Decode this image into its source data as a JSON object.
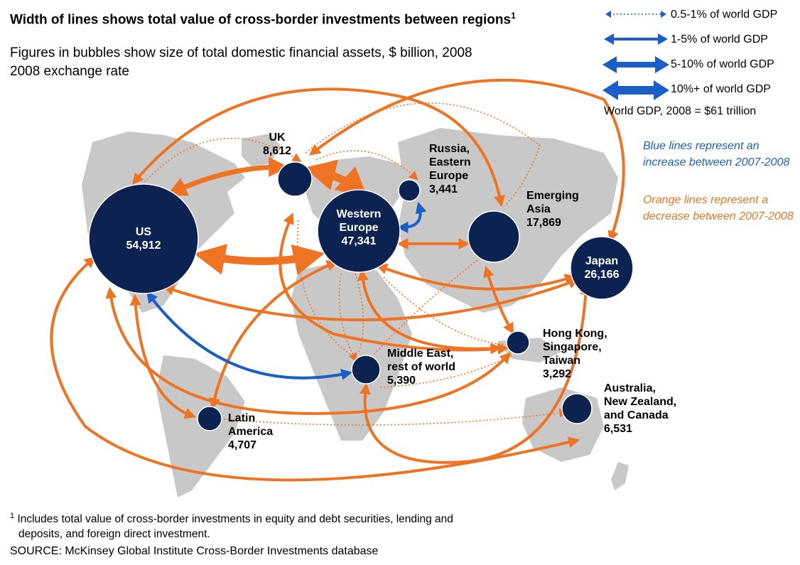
{
  "header": {
    "title": "Width of lines shows total value of cross-border investments between regions",
    "title_footnote_marker": "1",
    "subtitle_line1": "Figures in bubbles show size of total domestic financial assets, $ billion, 2008",
    "subtitle_line2": "2008 exchange rate"
  },
  "legend": {
    "items": [
      {
        "label": "0.5-1% of world GDP",
        "style": "dotted"
      },
      {
        "label": "1-5% of world GDP",
        "style": "thin"
      },
      {
        "label": "5-10% of world GDP",
        "style": "medium"
      },
      {
        "label": "10%+ of world GDP",
        "style": "thick"
      }
    ],
    "world_gdp": "World GDP, 2008 = $61 trillion",
    "blue_note": "Blue lines represent an increase between 2007-2008",
    "orange_note": "Orange lines represent a decrease between 2007-2008"
  },
  "colors": {
    "bubble": "#0c2352",
    "orange": "#ee7424",
    "blue": "#1a5fc8",
    "map": "#c8c8c8"
  },
  "regions": {
    "us": {
      "name": "US",
      "value": "54,912"
    },
    "uk": {
      "name": "UK",
      "value": "8,612"
    },
    "western_europe": {
      "name": "Western Europe",
      "value": "47,341"
    },
    "russia": {
      "name": "Russia, Eastern Europe",
      "value": "3,441"
    },
    "emerging_asia": {
      "name": "Emerging Asia",
      "value": "17,869"
    },
    "japan": {
      "name": "Japan",
      "value": "26,166"
    },
    "hong_kong": {
      "name": "Hong Kong, Singapore, Taiwan",
      "value": "3,292"
    },
    "middle_east": {
      "name": "Middle East, rest of world",
      "value": "5,390"
    },
    "latin_america": {
      "name": "Latin America",
      "value": "4,707"
    },
    "australia": {
      "name": "Australia, New Zealand, and Canada",
      "value": "6,531"
    }
  },
  "footer": {
    "footnote_marker": "1",
    "footnote_line1": "Includes total value of cross-border investments in equity and debt securities, lending and",
    "footnote_line2": "deposits, and foreign direct investment.",
    "source": "SOURCE: McKinsey Global Institute Cross-Border Investments database"
  }
}
